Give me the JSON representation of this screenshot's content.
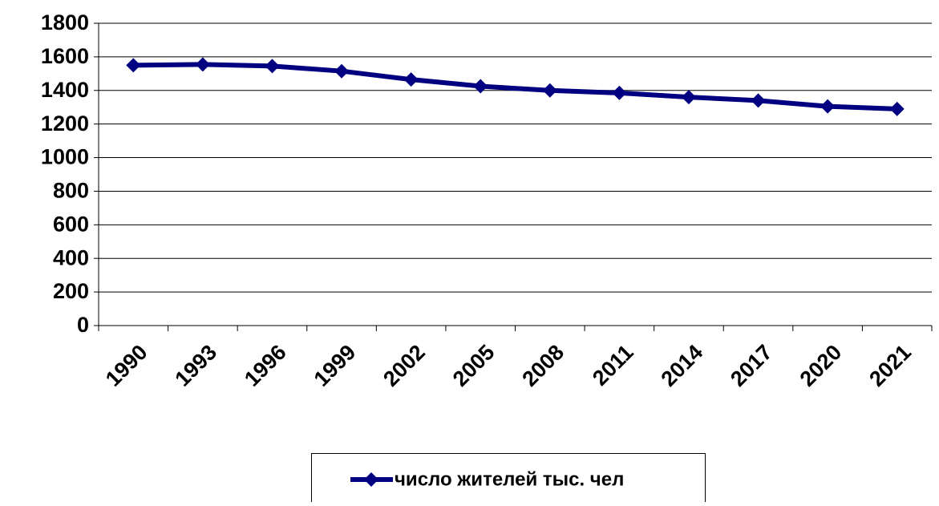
{
  "chart_data": {
    "type": "line",
    "categories": [
      "1990",
      "1993",
      "1996",
      "1999",
      "2002",
      "2005",
      "2008",
      "2011",
      "2014",
      "2017",
      "2020",
      "2021"
    ],
    "series": [
      {
        "name": "число жителей тыс. чел",
        "color": "#000080",
        "values": [
          1550,
          1555,
          1545,
          1515,
          1465,
          1425,
          1400,
          1385,
          1360,
          1340,
          1305,
          1290
        ]
      }
    ],
    "ylim": [
      0,
      1800
    ],
    "yticks": [
      0,
      200,
      400,
      600,
      800,
      1000,
      1200,
      1400,
      1600,
      1800
    ],
    "grid": true,
    "legend": "bottom"
  }
}
